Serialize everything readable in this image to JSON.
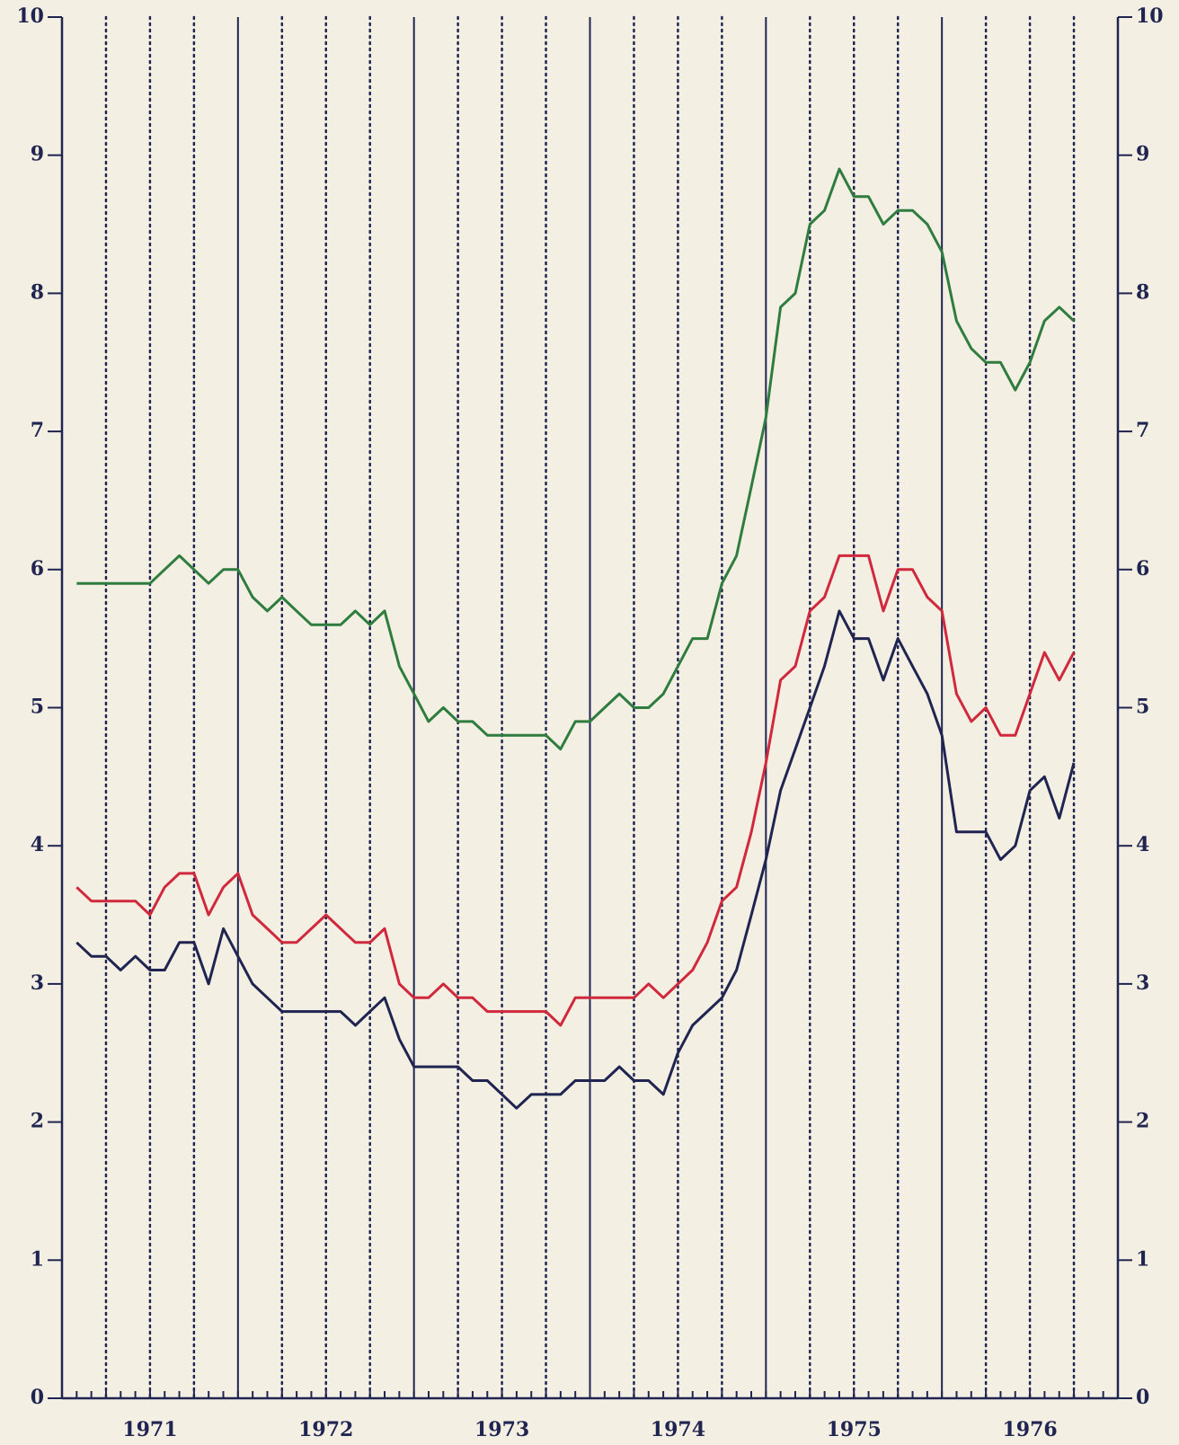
{
  "chart_data": {
    "type": "line",
    "x": [
      1971.083,
      1971.167,
      1971.25,
      1971.333,
      1971.417,
      1971.5,
      1971.583,
      1971.667,
      1971.75,
      1971.833,
      1971.917,
      1972,
      1972.083,
      1972.167,
      1972.25,
      1972.333,
      1972.417,
      1972.5,
      1972.583,
      1972.667,
      1972.75,
      1972.833,
      1972.917,
      1973,
      1973.083,
      1973.167,
      1973.25,
      1973.333,
      1973.417,
      1973.5,
      1973.583,
      1973.667,
      1973.75,
      1973.833,
      1973.917,
      1974,
      1974.083,
      1974.167,
      1974.25,
      1974.333,
      1974.417,
      1974.5,
      1974.583,
      1974.667,
      1974.75,
      1974.833,
      1974.917,
      1975,
      1975.083,
      1975.167,
      1975.25,
      1975.333,
      1975.417,
      1975.5,
      1975.583,
      1975.667,
      1975.75,
      1975.833,
      1975.917,
      1976,
      1976.083,
      1976.167,
      1976.25,
      1976.333,
      1976.417,
      1976.5,
      1976.583,
      1976.667,
      1976.75
    ],
    "series": [
      {
        "color": "#2e7d3e",
        "values": [
          5.9,
          5.9,
          5.9,
          5.9,
          5.9,
          5.9,
          6.0,
          6.1,
          6.0,
          5.9,
          6.0,
          6.0,
          5.8,
          5.7,
          5.8,
          5.7,
          5.6,
          5.6,
          5.6,
          5.7,
          5.6,
          5.7,
          5.3,
          5.1,
          4.9,
          5.0,
          4.9,
          4.9,
          4.8,
          4.8,
          4.8,
          4.8,
          4.8,
          4.7,
          4.9,
          4.9,
          5.0,
          5.1,
          5.0,
          5.0,
          5.1,
          5.3,
          5.5,
          5.5,
          5.9,
          6.1,
          6.6,
          7.1,
          7.9,
          8.0,
          8.5,
          8.6,
          8.9,
          8.7,
          8.7,
          8.5,
          8.6,
          8.6,
          8.5,
          8.3,
          7.8,
          7.6,
          7.5,
          7.5,
          7.3,
          7.5,
          7.8,
          7.9,
          7.8
        ]
      },
      {
        "color": "#d0283c",
        "values": [
          3.7,
          3.6,
          3.6,
          3.6,
          3.6,
          3.5,
          3.7,
          3.8,
          3.8,
          3.5,
          3.7,
          3.8,
          3.5,
          3.4,
          3.3,
          3.3,
          3.4,
          3.5,
          3.4,
          3.3,
          3.3,
          3.4,
          3.0,
          2.9,
          2.9,
          3.0,
          2.9,
          2.9,
          2.8,
          2.8,
          2.8,
          2.8,
          2.8,
          2.7,
          2.9,
          2.9,
          2.9,
          2.9,
          2.9,
          3.0,
          2.9,
          3.0,
          3.1,
          3.3,
          3.6,
          3.7,
          4.1,
          4.6,
          5.2,
          5.3,
          5.7,
          5.8,
          6.1,
          6.1,
          6.1,
          5.7,
          6.0,
          6.0,
          5.8,
          5.7,
          5.1,
          4.9,
          5.0,
          4.8,
          4.8,
          5.1,
          5.4,
          5.2,
          5.4
        ]
      },
      {
        "color": "#1f2450",
        "values": [
          3.3,
          3.2,
          3.2,
          3.1,
          3.2,
          3.1,
          3.1,
          3.3,
          3.3,
          3.0,
          3.4,
          3.2,
          3.0,
          2.9,
          2.8,
          2.8,
          2.8,
          2.8,
          2.8,
          2.7,
          2.8,
          2.9,
          2.6,
          2.4,
          2.4,
          2.4,
          2.4,
          2.3,
          2.3,
          2.2,
          2.1,
          2.2,
          2.2,
          2.2,
          2.3,
          2.3,
          2.3,
          2.4,
          2.3,
          2.3,
          2.2,
          2.5,
          2.7,
          2.8,
          2.9,
          3.1,
          3.5,
          3.9,
          4.4,
          4.7,
          5.0,
          5.3,
          5.7,
          5.5,
          5.5,
          5.2,
          5.5,
          5.3,
          5.1,
          4.8,
          4.1,
          4.1,
          4.1,
          3.9,
          4.0,
          4.4,
          4.5,
          4.2,
          4.6
        ]
      }
    ],
    "xlim": [
      1971,
      1977
    ],
    "xticks": [
      {
        "value": 1971.5,
        "label": "1971"
      },
      {
        "value": 1972.5,
        "label": "1972"
      },
      {
        "value": 1973.5,
        "label": "1973"
      },
      {
        "value": 1974.5,
        "label": "1974"
      },
      {
        "value": 1975.5,
        "label": "1975"
      },
      {
        "value": 1976.5,
        "label": "1976"
      }
    ],
    "ylim": [
      0,
      10
    ],
    "yticks": [
      0,
      1,
      2,
      3,
      4,
      5,
      6,
      7,
      8,
      9,
      10
    ],
    "y2lim": [
      0,
      10
    ],
    "y2ticks": [
      0,
      1,
      2,
      3,
      4,
      5,
      6,
      7,
      8,
      9,
      10
    ]
  }
}
